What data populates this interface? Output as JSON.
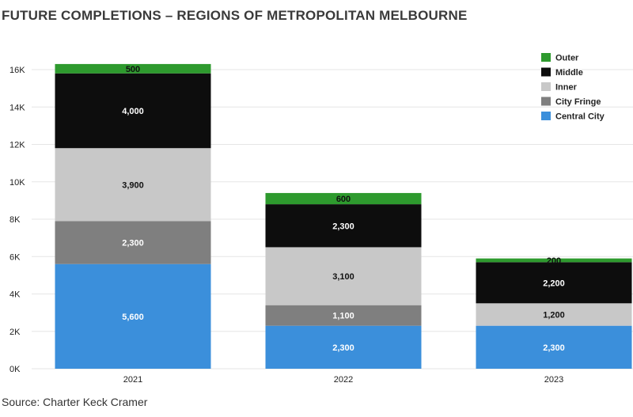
{
  "title": "FUTURE COMPLETIONS – REGIONS OF METROPOLITAN MELBOURNE",
  "source": "Source: Charter Keck Cramer",
  "chart_data": {
    "type": "bar",
    "stacked": true,
    "categories": [
      "2021",
      "2022",
      "2023"
    ],
    "series": [
      {
        "name": "Central City",
        "color": "#3b8fdb",
        "label_color": "#ffffff",
        "values": [
          5600,
          2300,
          2300
        ],
        "labels": [
          "5,600",
          "2,300",
          "2,300"
        ]
      },
      {
        "name": "City Fringe",
        "color": "#7f7f7f",
        "label_color": "#ffffff",
        "values": [
          2300,
          1100,
          0
        ],
        "labels": [
          "2,300",
          "1,100",
          ""
        ]
      },
      {
        "name": "Inner",
        "color": "#c8c8c8",
        "label_color": "#111111",
        "values": [
          3900,
          3100,
          1200
        ],
        "labels": [
          "3,900",
          "3,100",
          "1,200"
        ]
      },
      {
        "name": "Middle",
        "color": "#0d0d0d",
        "label_color": "#ffffff",
        "values": [
          4000,
          2300,
          2200
        ],
        "labels": [
          "4,000",
          "2,300",
          "2,200"
        ]
      },
      {
        "name": "Outer",
        "color": "#2e9a2e",
        "label_color": "#111111",
        "values": [
          500,
          600,
          200
        ],
        "labels": [
          "500",
          "600",
          "200"
        ]
      }
    ],
    "ylim": [
      0,
      16500
    ],
    "yticks": [
      0,
      2000,
      4000,
      6000,
      8000,
      10000,
      12000,
      14000,
      16000
    ],
    "ytick_labels": [
      "0K",
      "2K",
      "4K",
      "6K",
      "8K",
      "10K",
      "12K",
      "14K",
      "16K"
    ],
    "grid": true,
    "legend_position": "top-right",
    "legend_order": [
      "Outer",
      "Middle",
      "Inner",
      "City Fringe",
      "Central City"
    ]
  }
}
